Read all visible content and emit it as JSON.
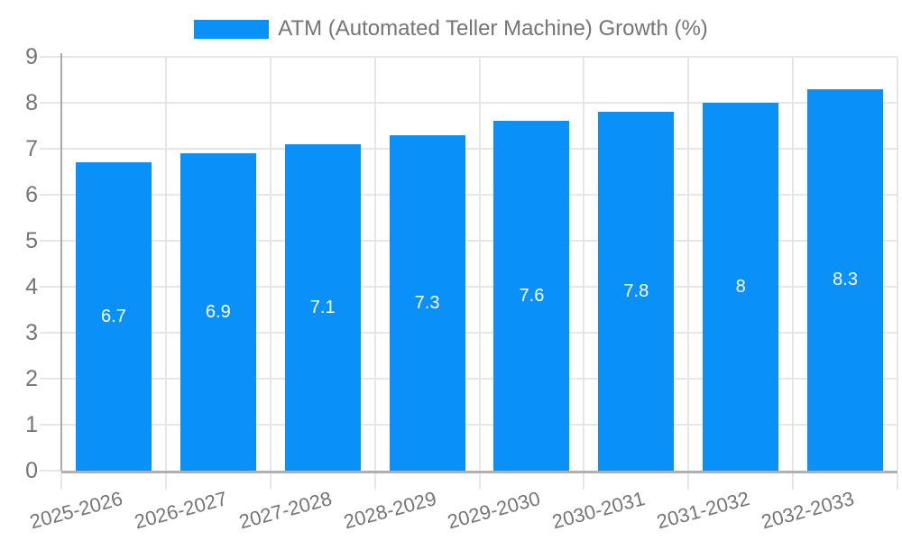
{
  "chart_data": {
    "type": "bar",
    "title": "ATM (Automated Teller Machine) Growth (%)",
    "categories": [
      "2025-2026",
      "2026-2027",
      "2027-2028",
      "2028-2029",
      "2029-2030",
      "2030-2031",
      "2031-2032",
      "2032-2033"
    ],
    "values": [
      6.7,
      6.9,
      7.1,
      7.3,
      7.6,
      7.8,
      8,
      8.3
    ],
    "value_labels": [
      "6.7",
      "6.9",
      "7.1",
      "7.3",
      "7.6",
      "7.8",
      "8",
      "8.3"
    ],
    "xlabel": "",
    "ylabel": "",
    "ylim": [
      0,
      9
    ],
    "y_ticks": [
      0,
      1,
      2,
      3,
      4,
      5,
      6,
      7,
      8,
      9
    ],
    "grid": true,
    "legend_position": "top",
    "colors": {
      "bar": "#0a91f9",
      "value_label_text": "#ffffff",
      "axis_text": "#757575",
      "gridline": "#e6e6e6",
      "x_axis_line": "#b0b0b0",
      "y_axis_line": "#a9a9a9",
      "background": "#ffffff"
    }
  }
}
